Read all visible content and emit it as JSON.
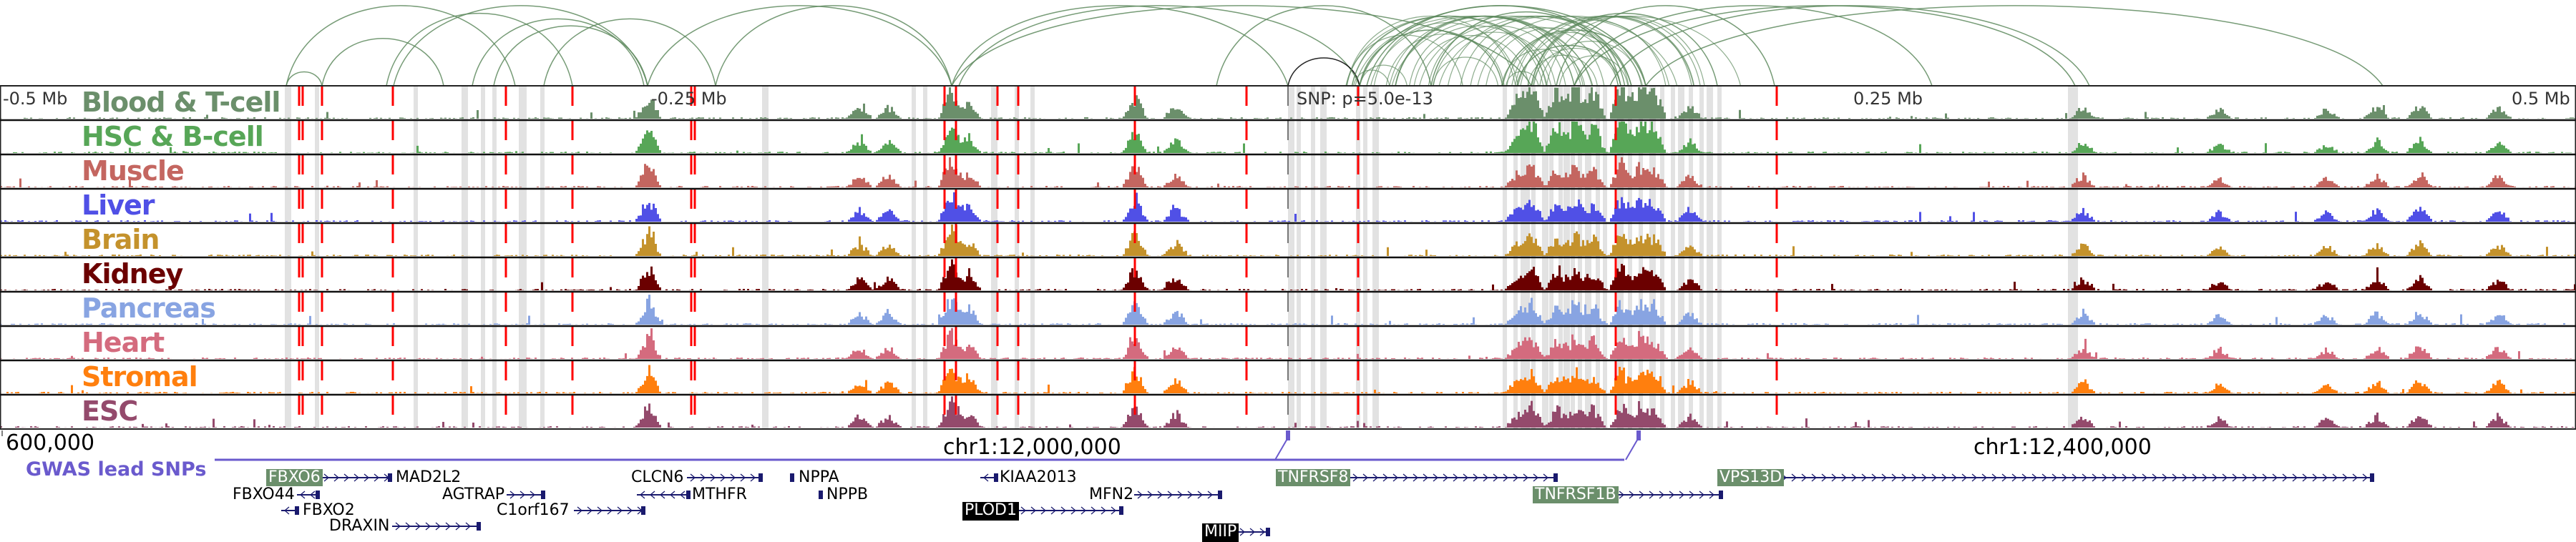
{
  "tracks": [
    {
      "label": "Blood & T-cell",
      "color": "#6b8f6b"
    },
    {
      "label": "HSC & B-cell",
      "color": "#57a657"
    },
    {
      "label": "Muscle",
      "color": "#c46660"
    },
    {
      "label": "Liver",
      "color": "#5050e6"
    },
    {
      "label": "Brain",
      "color": "#c4922c"
    },
    {
      "label": "Kidney",
      "color": "#6b0000"
    },
    {
      "label": "Pancreas",
      "color": "#88a4e2"
    },
    {
      "label": "Heart",
      "color": "#d46b7e"
    },
    {
      "label": "Stromal",
      "color": "#ff7f0e"
    },
    {
      "label": "ESC",
      "color": "#944a6c"
    }
  ],
  "axis": {
    "left": "-0.5 Mb",
    "left_mid": "-0.25 Mb",
    "snp": "SNP: p=5.0e-13",
    "right_mid": "0.25 Mb",
    "right": "0.5 Mb"
  },
  "coords": [
    "600,000",
    "chr1:12,000,000",
    "chr1:12,400,000"
  ],
  "gwas_label": "GWAS lead SNPs",
  "genes": [
    {
      "name": "FBXO6",
      "style": "highlight"
    },
    {
      "name": "MAD2L2"
    },
    {
      "name": "FBXO44"
    },
    {
      "name": "FBXO2"
    },
    {
      "name": "DRAXIN"
    },
    {
      "name": "AGTRAP"
    },
    {
      "name": "C1orf167"
    },
    {
      "name": "CLCN6"
    },
    {
      "name": "MTHFR"
    },
    {
      "name": "NPPA"
    },
    {
      "name": "NPPB"
    },
    {
      "name": "KIAA2013"
    },
    {
      "name": "MFN2"
    },
    {
      "name": "PLOD1",
      "style": "dark"
    },
    {
      "name": "MIIP",
      "style": "dark"
    },
    {
      "name": "TNFRSF8",
      "style": "highlight"
    },
    {
      "name": "TNFRSF1B",
      "style": "highlight"
    },
    {
      "name": "VPS13D",
      "style": "highlight"
    }
  ],
  "colors": {
    "highlight": "#6b8f6b",
    "dark": "#000000",
    "gene_line": "#1a1a6e",
    "gwas": "#6a5acd",
    "ld_line": "#ff0000",
    "arc": "#5e8a5e"
  }
}
